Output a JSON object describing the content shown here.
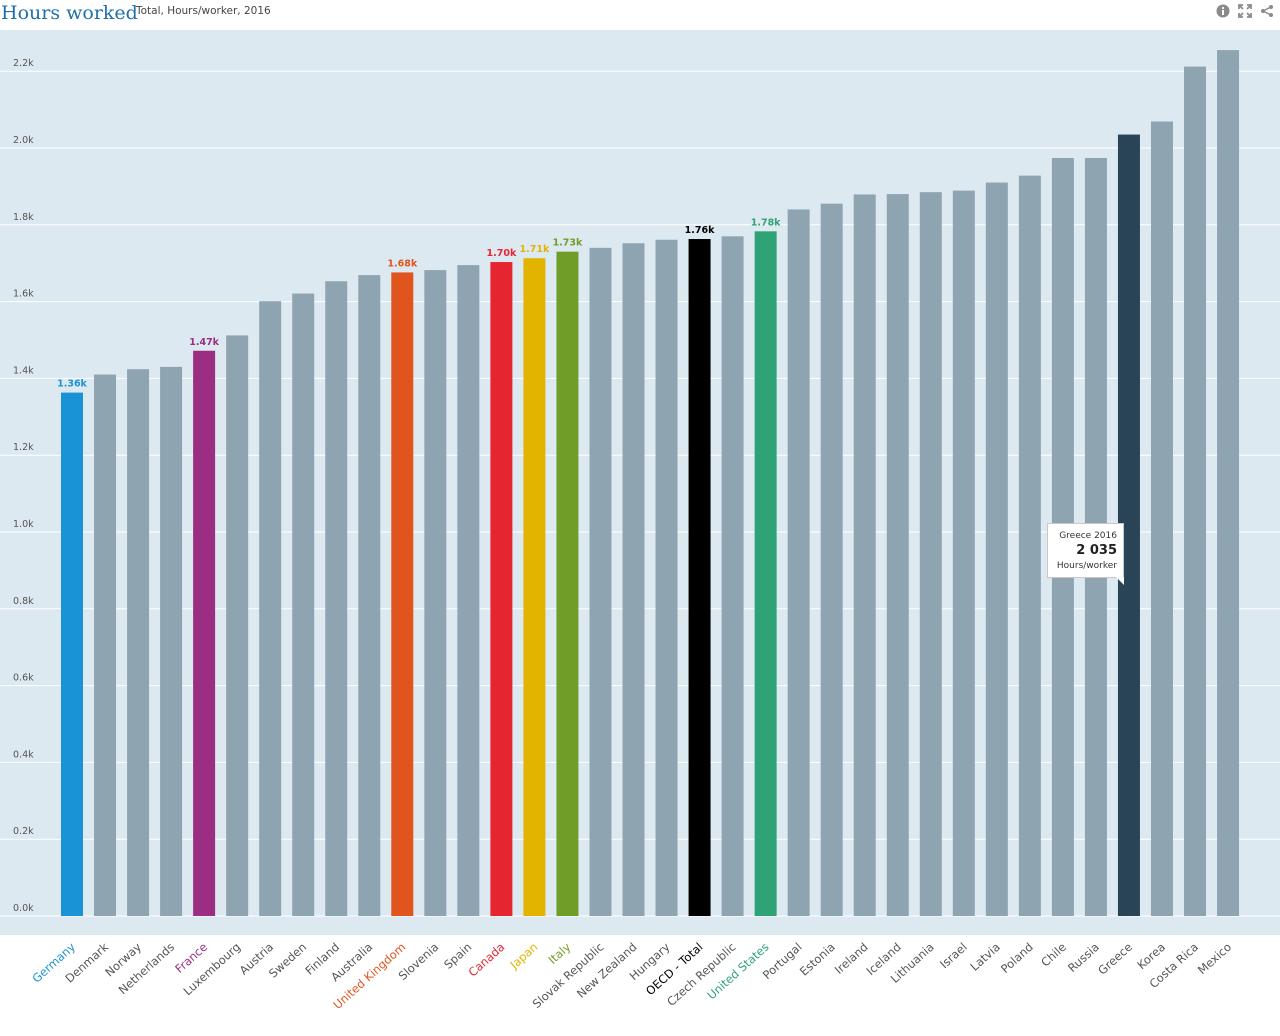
{
  "header": {
    "title": "Hours worked",
    "subtitle": "Total, Hours/worker, 2016",
    "tools": [
      "info-icon",
      "expand-icon",
      "share-icon"
    ]
  },
  "tooltip": {
    "label": "Greece 2016",
    "value": "2 035",
    "unit": "Hours/worker"
  },
  "chart_data": {
    "type": "bar",
    "title": "Hours worked",
    "subtitle": "Total, Hours/worker, 2016",
    "ylim": [
      0,
      2250
    ],
    "yticks": [
      "0.0k",
      "0.2k",
      "0.4k",
      "0.6k",
      "0.8k",
      "1.0k",
      "1.2k",
      "1.4k",
      "1.6k",
      "1.8k",
      "2.0k",
      "2.2k"
    ],
    "grid": true,
    "default_color": "#8fa4b1",
    "categories": [
      "Germany",
      "Denmark",
      "Norway",
      "Netherlands",
      "France",
      "Luxembourg",
      "Austria",
      "Sweden",
      "Finland",
      "Australia",
      "United Kingdom",
      "Slovenia",
      "Spain",
      "Canada",
      "Japan",
      "Italy",
      "Slovak Republic",
      "New Zealand",
      "Hungary",
      "OECD - Total",
      "Czech Republic",
      "United States",
      "Portugal",
      "Estonia",
      "Ireland",
      "Iceland",
      "Lithuania",
      "Israel",
      "Latvia",
      "Poland",
      "Chile",
      "Russia",
      "Greece",
      "Korea",
      "Costa Rica",
      "Mexico"
    ],
    "values": [
      1363,
      1410,
      1424,
      1430,
      1472,
      1512,
      1601,
      1621,
      1653,
      1669,
      1676,
      1682,
      1695,
      1703,
      1713,
      1730,
      1740,
      1752,
      1761,
      1763,
      1770,
      1783,
      1840,
      1855,
      1879,
      1880,
      1885,
      1889,
      1910,
      1928,
      1974,
      1974,
      2035,
      2069,
      2212,
      2255
    ],
    "highlights": [
      {
        "index": 0,
        "label": "1.36k",
        "color": "#1a92d6"
      },
      {
        "index": 4,
        "label": "1.47k",
        "color": "#9b2e83"
      },
      {
        "index": 10,
        "label": "1.68k",
        "color": "#e0541e"
      },
      {
        "index": 13,
        "label": "1.70k",
        "color": "#e5252f"
      },
      {
        "index": 14,
        "label": "1.71k",
        "color": "#e2b400"
      },
      {
        "index": 15,
        "label": "1.73k",
        "color": "#6f9e28"
      },
      {
        "index": 19,
        "label": "1.76k",
        "color": "#000000"
      },
      {
        "index": 21,
        "label": "1.78k",
        "color": "#2fa276"
      },
      {
        "index": 32,
        "label": "",
        "color": "#2a4457"
      }
    ]
  }
}
